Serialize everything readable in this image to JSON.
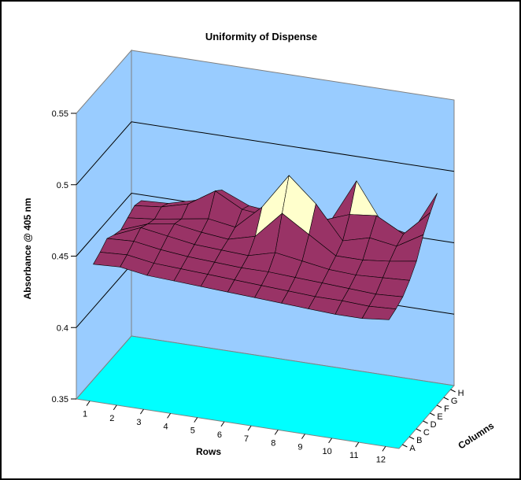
{
  "chart_data": {
    "type": "surface",
    "title": "Uniformity of Dispense",
    "zlabel": "Absorbance @ 405 nm",
    "xlabel": "Rows",
    "ylabel": "Columns",
    "zlim": [
      0.35,
      0.55
    ],
    "z_ticks": [
      "0.35",
      "0.4",
      "0.45",
      "0.5",
      "0.55"
    ],
    "rows": [
      "1",
      "2",
      "3",
      "4",
      "5",
      "6",
      "7",
      "8",
      "9",
      "10",
      "11",
      "12"
    ],
    "columns": [
      "A",
      "B",
      "C",
      "D",
      "E",
      "F",
      "G",
      "H"
    ],
    "grid": true,
    "colors": {
      "wall": "#99CCFF",
      "floor": "#00FFFF",
      "surface_band_045_05": "#993366",
      "surface_band_05_055": "#FFFFCC",
      "mesh_lines": "#000000"
    },
    "values": [
      [
        0.443,
        0.446,
        0.45,
        0.447,
        0.445,
        0.448,
        0.451,
        0.449
      ],
      [
        0.444,
        0.447,
        0.451,
        0.455,
        0.452,
        0.45,
        0.453,
        0.45
      ],
      [
        0.441,
        0.444,
        0.448,
        0.452,
        0.455,
        0.453,
        0.458,
        0.455
      ],
      [
        0.44,
        0.443,
        0.446,
        0.449,
        0.452,
        0.456,
        0.47,
        0.465
      ],
      [
        0.439,
        0.442,
        0.445,
        0.448,
        0.45,
        0.453,
        0.46,
        0.457
      ],
      [
        0.438,
        0.441,
        0.444,
        0.447,
        0.455,
        0.47,
        0.458,
        0.455
      ],
      [
        0.437,
        0.44,
        0.444,
        0.452,
        0.474,
        0.495,
        0.473,
        0.456
      ],
      [
        0.436,
        0.439,
        0.443,
        0.449,
        0.462,
        0.478,
        0.461,
        0.454
      ],
      [
        0.435,
        0.438,
        0.442,
        0.446,
        0.45,
        0.455,
        0.468,
        0.486
      ],
      [
        0.434,
        0.438,
        0.441,
        0.445,
        0.45,
        0.46,
        0.47,
        0.458
      ],
      [
        0.434,
        0.437,
        0.44,
        0.446,
        0.452,
        0.457,
        0.46,
        0.454
      ],
      [
        0.436,
        0.438,
        0.441,
        0.447,
        0.455,
        0.468,
        0.478,
        0.486
      ]
    ]
  }
}
